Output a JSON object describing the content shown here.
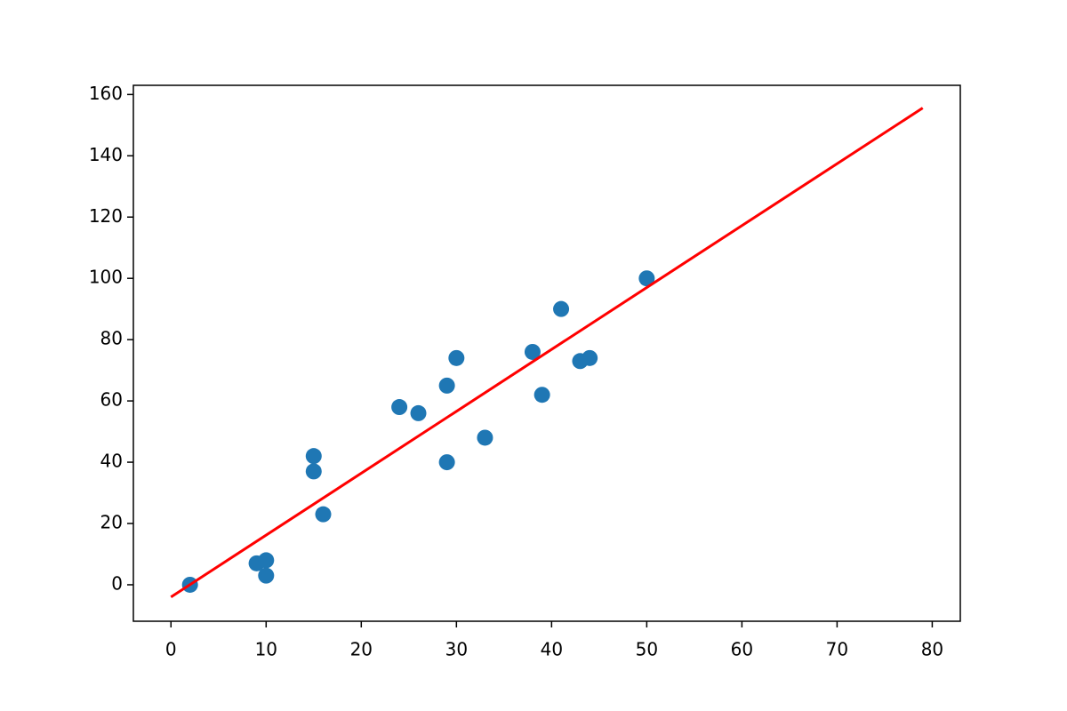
{
  "chart_data": {
    "type": "scatter",
    "series": [
      {
        "type": "scatter",
        "color": "#1f77b4",
        "x": [
          2,
          9,
          10,
          10,
          15,
          15,
          16,
          24,
          26,
          29,
          29,
          30,
          33,
          38,
          39,
          41,
          43,
          44,
          50
        ],
        "values": [
          0,
          7,
          8,
          3,
          42,
          37,
          23,
          58,
          56,
          65,
          40,
          74,
          48,
          76,
          62,
          90,
          73,
          74,
          100
        ]
      },
      {
        "type": "line",
        "color": "#ff0000",
        "x": [
          0,
          79
        ],
        "values": [
          -4,
          155.6
        ]
      }
    ],
    "xlim": [
      -3.95,
      82.95
    ],
    "xticks": [
      0,
      10,
      20,
      30,
      40,
      50,
      60,
      70,
      80
    ],
    "ylim": [
      -11.9,
      163.0
    ],
    "yticks": [
      0,
      20,
      40,
      60,
      80,
      100,
      120,
      140,
      160
    ],
    "grid": false
  }
}
